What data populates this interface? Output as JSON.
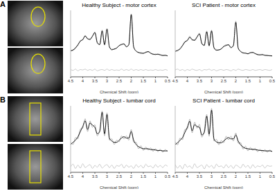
{
  "panel_labels": [
    "A",
    "B"
  ],
  "chart_data": [
    {
      "type": "line",
      "title": "Healthy Subject - motor cortex",
      "xlabel": "Chemical Shift (ppm)",
      "tick_labels": "x",
      "xlim": [
        4.5,
        0.5
      ],
      "xticks": [
        4.5,
        4,
        3.5,
        3,
        2.5,
        2,
        1.5,
        1,
        0.5
      ],
      "ylim": [
        -0.45,
        1.1
      ],
      "x": [
        4.5,
        4.4,
        4.3,
        4.2,
        4.1,
        4.0,
        3.9,
        3.8,
        3.7,
        3.6,
        3.5,
        3.4,
        3.3,
        3.2,
        3.1,
        3.0,
        2.9,
        2.8,
        2.7,
        2.6,
        2.5,
        2.4,
        2.3,
        2.2,
        2.1,
        2.0,
        1.9,
        1.8,
        1.7,
        1.6,
        1.5,
        1.4,
        1.3,
        1.2,
        1.1,
        1.0,
        0.9,
        0.8,
        0.7,
        0.6,
        0.5
      ],
      "series": [
        {
          "color": "#9a9a9a",
          "values": [
            0.17,
            0.16,
            0.24,
            0.28,
            0.4,
            0.41,
            0.52,
            0.43,
            0.44,
            0.49,
            0.6,
            0.33,
            0.31,
            0.64,
            0.29,
            0.68,
            0.24,
            0.2,
            0.19,
            0.23,
            0.27,
            0.32,
            0.31,
            0.26,
            0.29,
            1.02,
            0.24,
            0.16,
            0.11,
            0.12,
            0.09,
            0.13,
            0.13,
            0.11,
            0.07,
            0.08,
            0.07,
            0.07,
            0.04,
            0.06,
            0.03
          ]
        },
        {
          "color": "#000000",
          "values": [
            0.15,
            0.18,
            0.22,
            0.3,
            0.38,
            0.42,
            0.5,
            0.44,
            0.42,
            0.5,
            0.58,
            0.35,
            0.3,
            0.62,
            0.3,
            0.66,
            0.25,
            0.18,
            0.2,
            0.22,
            0.28,
            0.3,
            0.32,
            0.25,
            0.3,
            1.0,
            0.25,
            0.15,
            0.12,
            0.1,
            0.1,
            0.12,
            0.14,
            0.1,
            0.08,
            0.07,
            0.08,
            0.06,
            0.05,
            0.05,
            0.04
          ]
        },
        {
          "color": "#b4b4b4",
          "values": [
            -0.28,
            -0.3,
            -0.27,
            -0.31,
            -0.28,
            -0.29,
            -0.27,
            -0.3,
            -0.28,
            -0.3,
            -0.27,
            -0.31,
            -0.29,
            -0.28,
            -0.3,
            -0.27,
            -0.3,
            -0.28,
            -0.3,
            -0.29,
            -0.3,
            -0.27,
            -0.3,
            -0.28,
            -0.3,
            -0.27,
            -0.3,
            -0.28,
            -0.3,
            -0.28,
            -0.3,
            -0.28,
            -0.3,
            -0.29,
            -0.3,
            -0.28,
            -0.3,
            -0.29,
            -0.3,
            -0.28,
            -0.3
          ]
        }
      ]
    },
    {
      "type": "line",
      "title": "SCI Patient - motor cortex",
      "xlabel": "Chemical Shift (ppm)",
      "tick_labels": "x",
      "xlim": [
        4.5,
        0.5
      ],
      "xticks": [
        4.5,
        4,
        3.5,
        3,
        2.5,
        2,
        1.5,
        1,
        0.5
      ],
      "ylim": [
        -0.45,
        1.1
      ],
      "x": [
        4.5,
        4.4,
        4.3,
        4.2,
        4.1,
        4.0,
        3.9,
        3.8,
        3.7,
        3.6,
        3.5,
        3.4,
        3.3,
        3.2,
        3.1,
        3.0,
        2.9,
        2.8,
        2.7,
        2.6,
        2.5,
        2.4,
        2.3,
        2.2,
        2.1,
        2.0,
        1.9,
        1.8,
        1.7,
        1.6,
        1.5,
        1.4,
        1.3,
        1.2,
        1.1,
        1.0,
        0.9,
        0.8,
        0.7,
        0.6,
        0.5
      ],
      "series": [
        {
          "color": "#9a9a9a",
          "values": [
            0.16,
            0.15,
            0.22,
            0.27,
            0.38,
            0.39,
            0.5,
            0.4,
            0.42,
            0.47,
            0.57,
            0.31,
            0.3,
            0.62,
            0.26,
            0.64,
            0.22,
            0.19,
            0.17,
            0.21,
            0.25,
            0.3,
            0.29,
            0.24,
            0.27,
            0.85,
            0.21,
            0.15,
            0.1,
            0.11,
            0.08,
            0.12,
            0.11,
            0.1,
            0.06,
            0.07,
            0.06,
            0.06,
            0.04,
            0.05,
            0.03
          ]
        },
        {
          "color": "#000000",
          "values": [
            0.14,
            0.17,
            0.2,
            0.28,
            0.36,
            0.4,
            0.47,
            0.42,
            0.4,
            0.48,
            0.55,
            0.33,
            0.28,
            0.6,
            0.28,
            0.62,
            0.23,
            0.17,
            0.18,
            0.2,
            0.26,
            0.28,
            0.3,
            0.23,
            0.28,
            0.82,
            0.22,
            0.14,
            0.11,
            0.1,
            0.09,
            0.11,
            0.12,
            0.09,
            0.07,
            0.06,
            0.07,
            0.05,
            0.05,
            0.04,
            0.04
          ]
        },
        {
          "color": "#b4b4b4",
          "values": [
            -0.29,
            -0.27,
            -0.3,
            -0.28,
            -0.31,
            -0.28,
            -0.3,
            -0.27,
            -0.29,
            -0.3,
            -0.28,
            -0.31,
            -0.28,
            -0.29,
            -0.27,
            -0.3,
            -0.28,
            -0.31,
            -0.29,
            -0.28,
            -0.3,
            -0.28,
            -0.29,
            -0.31,
            -0.28,
            -0.3,
            -0.27,
            -0.29,
            -0.3,
            -0.28,
            -0.29,
            -0.3,
            -0.28,
            -0.3,
            -0.29,
            -0.28,
            -0.3,
            -0.28,
            -0.29,
            -0.3,
            -0.28
          ]
        }
      ]
    },
    {
      "type": "line",
      "title": "Healthy Subject - lumbar cord",
      "xlabel": "Chemical Shift (ppm)",
      "tick_labels": "x",
      "xlim": [
        4.5,
        0.5
      ],
      "xticks": [
        4.5,
        4,
        3.5,
        3,
        2.5,
        2,
        1.5,
        1,
        0.5
      ],
      "ylim": [
        -0.45,
        1.1
      ],
      "x": [
        4.5,
        4.4,
        4.3,
        4.2,
        4.1,
        4.0,
        3.9,
        3.8,
        3.7,
        3.6,
        3.5,
        3.4,
        3.3,
        3.2,
        3.1,
        3.0,
        2.9,
        2.8,
        2.7,
        2.6,
        2.5,
        2.4,
        2.3,
        2.2,
        2.1,
        2.0,
        1.9,
        1.8,
        1.7,
        1.6,
        1.5,
        1.4,
        1.3,
        1.2,
        1.1,
        1.0,
        0.9,
        0.8,
        0.7,
        0.6,
        0.5
      ],
      "series": [
        {
          "color": "#9a9a9a",
          "values": [
            0.25,
            0.2,
            0.36,
            0.33,
            0.56,
            0.58,
            0.8,
            0.5,
            0.75,
            0.6,
            0.66,
            0.4,
            0.55,
            0.98,
            0.4,
            0.94,
            0.3,
            0.33,
            0.2,
            0.3,
            0.26,
            0.4,
            0.33,
            0.4,
            0.3,
            0.55,
            0.25,
            0.25,
            0.1,
            0.17,
            0.06,
            0.14,
            0.07,
            0.12,
            0.04,
            0.1,
            0.03,
            0.09,
            0.02,
            0.08,
            0.03
          ]
        },
        {
          "color": "#000000",
          "values": [
            0.2,
            0.25,
            0.3,
            0.38,
            0.5,
            0.62,
            0.75,
            0.55,
            0.7,
            0.65,
            0.6,
            0.45,
            0.5,
            0.95,
            0.45,
            0.9,
            0.35,
            0.28,
            0.25,
            0.25,
            0.3,
            0.35,
            0.38,
            0.35,
            0.35,
            0.5,
            0.3,
            0.2,
            0.15,
            0.12,
            0.1,
            0.1,
            0.1,
            0.08,
            0.08,
            0.07,
            0.06,
            0.06,
            0.05,
            0.05,
            0.05
          ]
        },
        {
          "color": "#b4b4b4",
          "values": [
            -0.32,
            -0.26,
            -0.36,
            -0.28,
            -0.35,
            -0.25,
            -0.34,
            -0.3,
            -0.27,
            -0.36,
            -0.29,
            -0.33,
            -0.26,
            -0.35,
            -0.3,
            -0.27,
            -0.34,
            -0.28,
            -0.36,
            -0.29,
            -0.31,
            -0.26,
            -0.35,
            -0.28,
            -0.33,
            -0.3,
            -0.36,
            -0.27,
            -0.33,
            -0.29,
            -0.35,
            -0.26,
            -0.32,
            -0.3,
            -0.35,
            -0.27,
            -0.33,
            -0.29,
            -0.34,
            -0.28,
            -0.31
          ]
        }
      ]
    },
    {
      "type": "line",
      "title": "SCI Patient - lumbar cord",
      "xlabel": "Chemical Shift (ppm)",
      "tick_labels": "x",
      "xlim": [
        4.5,
        0.5
      ],
      "xticks": [
        4.5,
        4,
        3.5,
        3,
        2.5,
        2,
        1.5,
        1,
        0.5
      ],
      "ylim": [
        -0.45,
        1.1
      ],
      "x": [
        4.5,
        4.4,
        4.3,
        4.2,
        4.1,
        4.0,
        3.9,
        3.8,
        3.7,
        3.6,
        3.5,
        3.4,
        3.3,
        3.2,
        3.1,
        3.0,
        2.9,
        2.8,
        2.7,
        2.6,
        2.5,
        2.4,
        2.3,
        2.2,
        2.1,
        2.0,
        1.9,
        1.8,
        1.7,
        1.6,
        1.5,
        1.4,
        1.3,
        1.2,
        1.1,
        1.0,
        0.9,
        0.8,
        0.7,
        0.6,
        0.5
      ],
      "series": [
        {
          "color": "#9a9a9a",
          "values": [
            0.26,
            0.19,
            0.35,
            0.31,
            0.55,
            0.56,
            0.79,
            0.47,
            0.72,
            0.58,
            0.67,
            0.37,
            0.53,
            0.9,
            0.39,
            1.04,
            0.28,
            0.32,
            0.19,
            0.29,
            0.24,
            0.39,
            0.31,
            0.39,
            0.28,
            0.47,
            0.23,
            0.24,
            0.09,
            0.16,
            0.05,
            0.13,
            0.06,
            0.11,
            0.03,
            0.09,
            0.02,
            0.08,
            0.02,
            0.07,
            0.02
          ]
        },
        {
          "color": "#000000",
          "values": [
            0.2,
            0.24,
            0.3,
            0.36,
            0.48,
            0.6,
            0.74,
            0.52,
            0.66,
            0.62,
            0.6,
            0.42,
            0.48,
            0.86,
            0.44,
            1.0,
            0.33,
            0.26,
            0.24,
            0.24,
            0.28,
            0.33,
            0.36,
            0.33,
            0.33,
            0.42,
            0.28,
            0.19,
            0.14,
            0.11,
            0.1,
            0.09,
            0.09,
            0.08,
            0.07,
            0.06,
            0.06,
            0.05,
            0.05,
            0.05,
            0.04
          ]
        },
        {
          "color": "#b4b4b4",
          "values": [
            -0.27,
            -0.35,
            -0.29,
            -0.37,
            -0.26,
            -0.33,
            -0.3,
            -0.36,
            -0.25,
            -0.34,
            -0.31,
            -0.28,
            -0.37,
            -0.27,
            -0.33,
            -0.29,
            -0.36,
            -0.26,
            -0.32,
            -0.3,
            -0.35,
            -0.27,
            -0.34,
            -0.29,
            -0.36,
            -0.28,
            -0.31,
            -0.35,
            -0.26,
            -0.33,
            -0.29,
            -0.36,
            -0.27,
            -0.34,
            -0.3,
            -0.32,
            -0.28,
            -0.35,
            -0.29,
            -0.31,
            -0.3
          ]
        }
      ]
    }
  ]
}
